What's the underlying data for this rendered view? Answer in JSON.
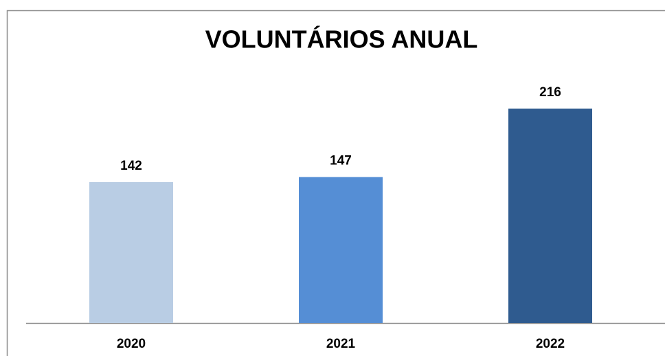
{
  "chart_data": {
    "type": "bar",
    "title": "VOLUNTÁRIOS ANUAL",
    "categories": [
      "2020",
      "2021",
      "2022"
    ],
    "values": [
      142,
      147,
      216
    ],
    "colors": [
      "#b9cde4",
      "#558ed5",
      "#2f5b8f"
    ]
  }
}
